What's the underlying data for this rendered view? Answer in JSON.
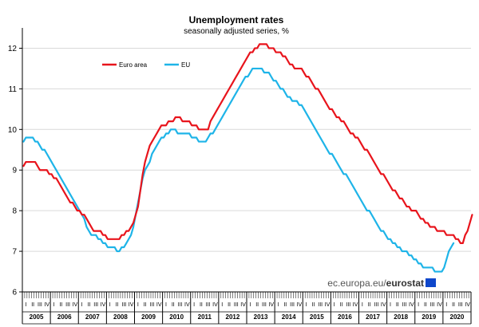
{
  "chart_data": {
    "type": "line",
    "title": "Unemployment rates",
    "subtitle": "seasonally adjusted series, %",
    "ylim": [
      6,
      12.5
    ],
    "y_ticks": [
      6,
      7,
      8,
      9,
      10,
      11,
      12
    ],
    "x_start": "2005-01",
    "quarter_labels": [
      "I",
      "II",
      "III",
      "IV"
    ],
    "years": [
      "2005",
      "2006",
      "2007",
      "2008",
      "2009",
      "2010",
      "2011",
      "2012",
      "2013",
      "2014",
      "2015",
      "2016",
      "2017",
      "2018",
      "2019",
      "2020"
    ],
    "series": [
      {
        "name": "Euro area",
        "color": "#e8141c",
        "values": [
          9.1,
          9.2,
          9.2,
          9.2,
          9.2,
          9.2,
          9.1,
          9.0,
          9.0,
          9.0,
          9.0,
          8.9,
          8.9,
          8.8,
          8.8,
          8.7,
          8.6,
          8.5,
          8.4,
          8.3,
          8.2,
          8.2,
          8.1,
          8.0,
          8.0,
          7.9,
          7.9,
          7.8,
          7.7,
          7.6,
          7.5,
          7.5,
          7.5,
          7.5,
          7.4,
          7.4,
          7.3,
          7.3,
          7.3,
          7.3,
          7.3,
          7.3,
          7.4,
          7.4,
          7.5,
          7.5,
          7.6,
          7.7,
          7.9,
          8.1,
          8.5,
          8.9,
          9.2,
          9.4,
          9.6,
          9.7,
          9.8,
          9.9,
          10.0,
          10.1,
          10.1,
          10.1,
          10.2,
          10.2,
          10.2,
          10.3,
          10.3,
          10.3,
          10.2,
          10.2,
          10.2,
          10.2,
          10.1,
          10.1,
          10.1,
          10.0,
          10.0,
          10.0,
          10.0,
          10.0,
          10.2,
          10.3,
          10.4,
          10.5,
          10.6,
          10.7,
          10.8,
          10.9,
          11.0,
          11.1,
          11.2,
          11.3,
          11.4,
          11.5,
          11.6,
          11.7,
          11.8,
          11.9,
          11.9,
          12.0,
          12.0,
          12.1,
          12.1,
          12.1,
          12.1,
          12.0,
          12.0,
          12.0,
          11.9,
          11.9,
          11.9,
          11.8,
          11.8,
          11.7,
          11.6,
          11.6,
          11.5,
          11.5,
          11.5,
          11.5,
          11.4,
          11.3,
          11.3,
          11.2,
          11.1,
          11.0,
          11.0,
          10.9,
          10.8,
          10.7,
          10.6,
          10.5,
          10.5,
          10.4,
          10.3,
          10.3,
          10.2,
          10.2,
          10.1,
          10.0,
          9.9,
          9.9,
          9.8,
          9.8,
          9.7,
          9.6,
          9.5,
          9.5,
          9.4,
          9.3,
          9.2,
          9.1,
          9.0,
          8.9,
          8.9,
          8.8,
          8.7,
          8.6,
          8.5,
          8.5,
          8.4,
          8.3,
          8.3,
          8.2,
          8.1,
          8.1,
          8.0,
          8.0,
          8.0,
          7.9,
          7.8,
          7.8,
          7.7,
          7.7,
          7.6,
          7.6,
          7.6,
          7.5,
          7.5,
          7.5,
          7.5,
          7.4,
          7.4,
          7.4,
          7.4,
          7.3,
          7.3,
          7.2,
          7.2,
          7.4,
          7.5,
          7.7,
          7.9
        ]
      },
      {
        "name": "EU",
        "color": "#1eb4e8",
        "values": [
          9.7,
          9.8,
          9.8,
          9.8,
          9.8,
          9.7,
          9.7,
          9.6,
          9.5,
          9.5,
          9.4,
          9.3,
          9.2,
          9.1,
          9.0,
          8.9,
          8.8,
          8.7,
          8.6,
          8.5,
          8.4,
          8.3,
          8.2,
          8.1,
          8.0,
          7.9,
          7.8,
          7.6,
          7.5,
          7.4,
          7.4,
          7.4,
          7.3,
          7.3,
          7.2,
          7.2,
          7.1,
          7.1,
          7.1,
          7.1,
          7.0,
          7.0,
          7.1,
          7.1,
          7.2,
          7.3,
          7.4,
          7.6,
          7.9,
          8.2,
          8.5,
          8.8,
          9.0,
          9.1,
          9.2,
          9.4,
          9.5,
          9.6,
          9.7,
          9.8,
          9.8,
          9.9,
          9.9,
          10.0,
          10.0,
          10.0,
          9.9,
          9.9,
          9.9,
          9.9,
          9.9,
          9.9,
          9.8,
          9.8,
          9.8,
          9.7,
          9.7,
          9.7,
          9.7,
          9.8,
          9.9,
          9.9,
          10.0,
          10.1,
          10.2,
          10.3,
          10.4,
          10.5,
          10.6,
          10.7,
          10.8,
          10.9,
          11.0,
          11.1,
          11.2,
          11.3,
          11.3,
          11.4,
          11.5,
          11.5,
          11.5,
          11.5,
          11.5,
          11.4,
          11.4,
          11.4,
          11.3,
          11.2,
          11.2,
          11.1,
          11.0,
          11.0,
          10.9,
          10.8,
          10.8,
          10.7,
          10.7,
          10.7,
          10.6,
          10.6,
          10.5,
          10.4,
          10.3,
          10.2,
          10.1,
          10.0,
          9.9,
          9.8,
          9.7,
          9.6,
          9.5,
          9.4,
          9.4,
          9.3,
          9.2,
          9.1,
          9.0,
          8.9,
          8.9,
          8.8,
          8.7,
          8.6,
          8.5,
          8.4,
          8.3,
          8.2,
          8.1,
          8.0,
          8.0,
          7.9,
          7.8,
          7.7,
          7.6,
          7.5,
          7.5,
          7.4,
          7.3,
          7.3,
          7.2,
          7.2,
          7.1,
          7.1,
          7.0,
          7.0,
          7.0,
          6.9,
          6.9,
          6.8,
          6.8,
          6.7,
          6.7,
          6.6,
          6.6,
          6.6,
          6.6,
          6.6,
          6.5,
          6.5,
          6.5,
          6.5,
          6.6,
          6.8,
          7.0,
          7.1,
          7.2
        ]
      }
    ],
    "legend": "top-left",
    "grid": true
  },
  "source": {
    "site": "ec.europa.eu/",
    "brand": "eurostat"
  }
}
